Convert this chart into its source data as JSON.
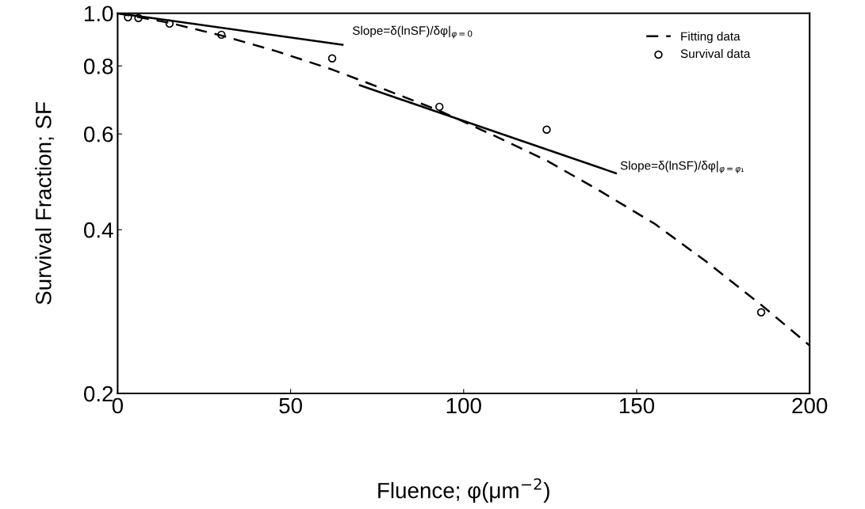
{
  "chart_data": {
    "type": "line",
    "xlabel": "Fluence; φ(μm$^{−2}$)",
    "ylabel": "Survival Fraction; SF",
    "log": "y",
    "xlim": [
      0,
      200
    ],
    "xticks": [
      0,
      50,
      100,
      150,
      200
    ],
    "ylim": [
      0.2,
      1.0
    ],
    "yticks": [
      0.2,
      0.4,
      0.6,
      0.8,
      {
        "value": 1.0,
        "label": "1.0"
      }
    ],
    "grid": false,
    "legend": "top right",
    "series": [
      {
        "name": "Fitting data",
        "line_style": "dashed",
        "marker": "none",
        "color": "#000000",
        "x": [
          0,
          15,
          30,
          46,
          62,
          77,
          93,
          108,
          124,
          139,
          155,
          170,
          186,
          200
        ],
        "values": [
          1.0,
          0.96,
          0.91,
          0.851,
          0.788,
          0.725,
          0.662,
          0.599,
          0.536,
          0.473,
          0.411,
          0.35,
          0.291,
          0.245
        ]
      },
      {
        "name": "Survival data",
        "type": "scatter",
        "marker": "circle",
        "color": "#000000",
        "x": [
          3,
          6,
          15,
          30,
          62,
          93,
          124,
          186
        ],
        "values": [
          0.983,
          0.98,
          0.957,
          0.913,
          0.826,
          0.673,
          0.611,
          0.282
        ]
      },
      {
        "line_style": "solid",
        "marker": "none",
        "color": "#000000",
        "x": [
          0,
          65
        ],
        "values": [
          1.0,
          0.875
        ]
      },
      {
        "line_style": "solid",
        "marker": "none",
        "color": "#000000",
        "x": [
          70,
          144
        ],
        "values": [
          0.737,
          0.508
        ]
      }
    ],
    "annotations": [
      "Slope=δ(lnSF)/δφ|$_{φ=0}$",
      "Slope=δ(lnSF)/δφ|$_{φ=φ₁}$"
    ]
  }
}
